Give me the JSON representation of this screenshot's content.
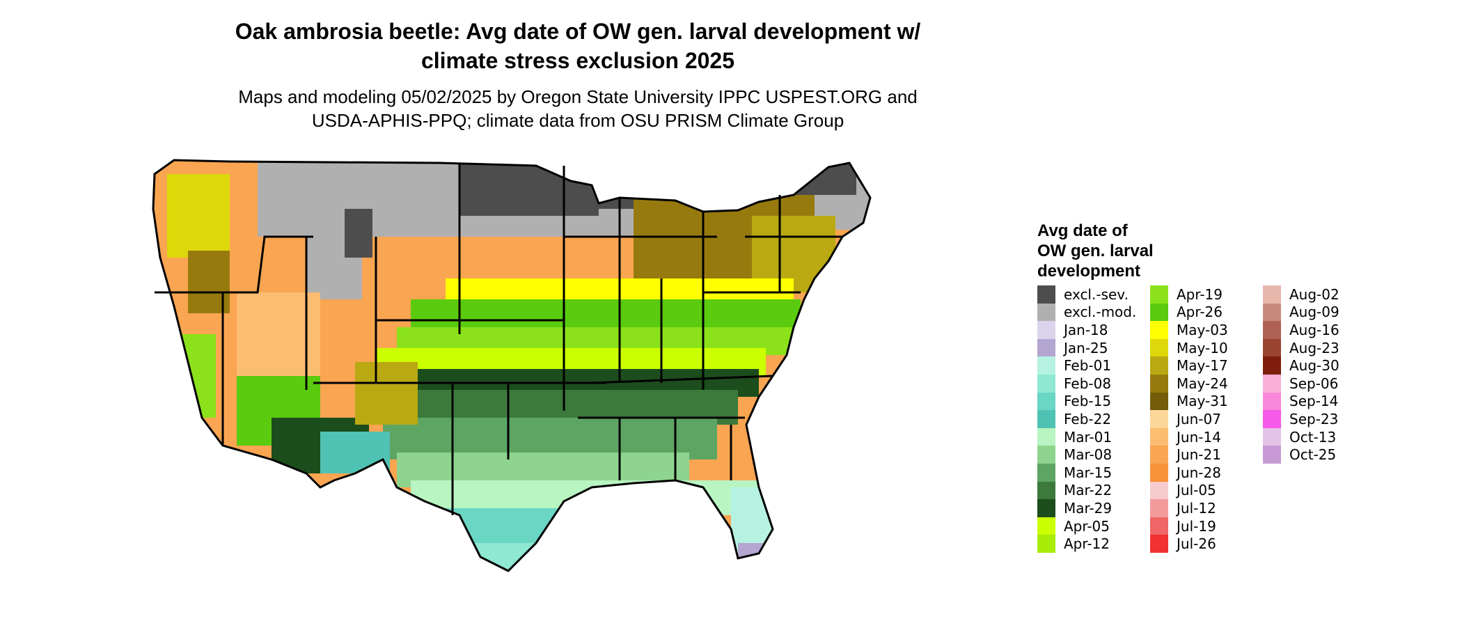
{
  "title": "Oak ambrosia beetle: Avg date of OW gen. larval development w/ climate stress exclusion 2025",
  "title_line1": "Oak ambrosia beetle: Avg date of OW gen. larval development w/",
  "title_line2": "climate stress exclusion 2025",
  "subtitle_line1": "Maps and modeling 05/02/2025 by Oregon State University IPPC USPEST.ORG and",
  "subtitle_line2": "USDA-APHIS-PPQ; climate data from OSU PRISM Climate Group",
  "legend": {
    "title_line1": "Avg date of",
    "title_line2": "OW gen. larval",
    "title_line3": "development",
    "columns": [
      [
        {
          "label": "excl.-sev.",
          "color": "#4d4d4d"
        },
        {
          "label": "excl.-mod.",
          "color": "#b0b0b0"
        },
        {
          "label": "Jan-18",
          "color": "#dcd4ec"
        },
        {
          "label": "Jan-25",
          "color": "#b3a6d1"
        },
        {
          "label": "Feb-01",
          "color": "#b6f2e2"
        },
        {
          "label": "Feb-08",
          "color": "#8fe8d2"
        },
        {
          "label": "Feb-15",
          "color": "#6ad6c4"
        },
        {
          "label": "Feb-22",
          "color": "#4fc2b4"
        },
        {
          "label": "Mar-01",
          "color": "#b9f5c2"
        },
        {
          "label": "Mar-08",
          "color": "#8ed48e"
        },
        {
          "label": "Mar-15",
          "color": "#5ea564"
        },
        {
          "label": "Mar-22",
          "color": "#3c7a3c"
        },
        {
          "label": "Mar-29",
          "color": "#1c4d1c"
        },
        {
          "label": "Apr-05",
          "color": "#ccff00"
        },
        {
          "label": "Apr-12",
          "color": "#a8ec08"
        }
      ],
      [
        {
          "label": "Apr-19",
          "color": "#8be21a"
        },
        {
          "label": "Apr-26",
          "color": "#5acb0f"
        },
        {
          "label": "May-03",
          "color": "#ffff00"
        },
        {
          "label": "May-10",
          "color": "#dcd80a"
        },
        {
          "label": "May-17",
          "color": "#baa912"
        },
        {
          "label": "May-24",
          "color": "#977a0e"
        },
        {
          "label": "May-31",
          "color": "#735c0a"
        },
        {
          "label": "Jun-07",
          "color": "#fcd79a"
        },
        {
          "label": "Jun-14",
          "color": "#fbbd72"
        },
        {
          "label": "Jun-21",
          "color": "#faa551"
        },
        {
          "label": "Jun-28",
          "color": "#f89238"
        },
        {
          "label": "Jul-05",
          "color": "#f6cccc"
        },
        {
          "label": "Jul-12",
          "color": "#f39a9a"
        },
        {
          "label": "Jul-19",
          "color": "#f06666"
        },
        {
          "label": "Jul-26",
          "color": "#f03232"
        }
      ],
      [
        {
          "label": "Aug-02",
          "color": "#e8b8ad"
        },
        {
          "label": "Aug-09",
          "color": "#c98a7e"
        },
        {
          "label": "Aug-16",
          "color": "#b06156"
        },
        {
          "label": "Aug-23",
          "color": "#9a4432"
        },
        {
          "label": "Aug-30",
          "color": "#7e1d0b"
        },
        {
          "label": "Sep-06",
          "color": "#f8aed6"
        },
        {
          "label": "Sep-14",
          "color": "#f787d9"
        },
        {
          "label": "Sep-23",
          "color": "#f55ae8"
        },
        {
          "label": "Oct-13",
          "color": "#e3c4e8"
        },
        {
          "label": "Oct-25",
          "color": "#c79ad6"
        }
      ]
    ]
  }
}
